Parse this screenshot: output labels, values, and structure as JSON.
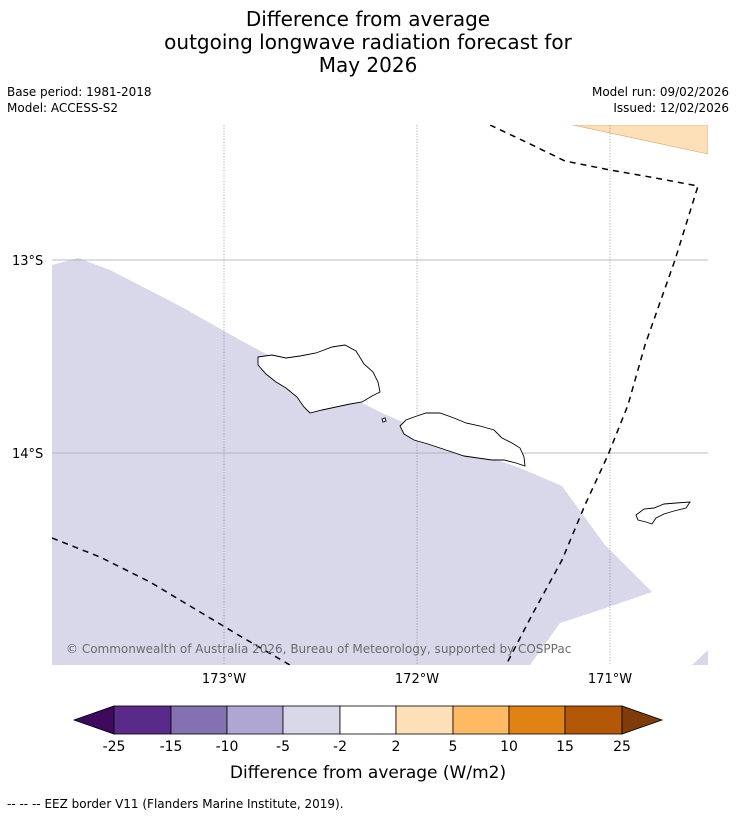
{
  "title": {
    "line1": "Difference from average",
    "line2": "outgoing longwave radiation forecast for",
    "line3": "May 2026"
  },
  "meta": {
    "base_period": "Base period: 1981-2018",
    "model": "Model: ACCESS-S2",
    "model_run": "Model run: 09/02/2026",
    "issued": "Issued: 12/02/2026"
  },
  "map": {
    "lat_labels": [
      "13°S",
      "14°S"
    ],
    "lon_labels": [
      "173°W",
      "172°W",
      "171°W"
    ],
    "copyright": "© Commonwealth of Australia 2026, Bureau of Meteorology, supported by COSPPac",
    "anomaly_fill_colors": {
      "minus5_to_minus2": "#d8d8ea",
      "plus2_to_plus5": "#fde0b8"
    }
  },
  "colorbar": {
    "ticks": [
      "-25",
      "-15",
      "-10",
      "-5",
      "-2",
      "2",
      "5",
      "10",
      "15",
      "25"
    ],
    "colors": [
      "#3f0a5e",
      "#5a2a8a",
      "#8371b1",
      "#b0a6d2",
      "#d8d8ea",
      "#ffffff",
      "#fde0b8",
      "#fdb964",
      "#e08214",
      "#b35806",
      "#7f3b08"
    ],
    "label": "Difference from average (W/m2)"
  },
  "footer": {
    "legend_symbol": "--  --  --",
    "legend_text": "EEZ border V11 (Flanders Marine Institute, 2019)."
  }
}
